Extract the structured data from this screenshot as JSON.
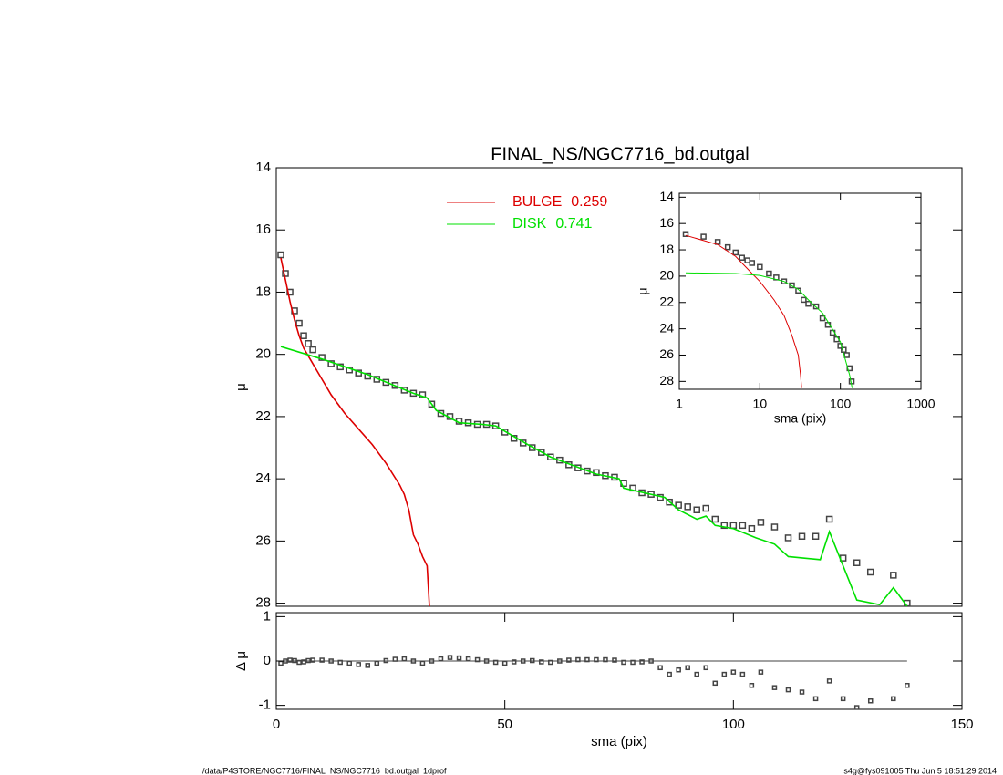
{
  "chart_data": [
    {
      "type": "line",
      "title": "FINAL_NS/NGC7716_bd.outgal",
      "ylabel": "μ",
      "xlim": [
        0,
        150
      ],
      "ylim": [
        28.1,
        14
      ],
      "yticks": [
        14,
        16,
        18,
        20,
        22,
        24,
        26,
        28
      ],
      "series": [
        {
          "style": "markers",
          "color": "#444444",
          "x": [
            1,
            2,
            3,
            4,
            5,
            6,
            7,
            8,
            10,
            12,
            14,
            16,
            18,
            20,
            22,
            24,
            26,
            28,
            30,
            32,
            34,
            36,
            38,
            40,
            42,
            44,
            46,
            48,
            50,
            52,
            54,
            56,
            58,
            60,
            62,
            64,
            66,
            68,
            70,
            72,
            74,
            76,
            78,
            80,
            82,
            84,
            86,
            88,
            90,
            92,
            94,
            96,
            98,
            100,
            102,
            104,
            106,
            109,
            112,
            115,
            118,
            121,
            124,
            127,
            130,
            135,
            138
          ],
          "values": [
            16.8,
            17.4,
            18.0,
            18.6,
            19.0,
            19.4,
            19.65,
            19.85,
            20.1,
            20.3,
            20.4,
            20.5,
            20.6,
            20.7,
            20.8,
            20.9,
            21.0,
            21.15,
            21.25,
            21.3,
            21.6,
            21.9,
            22.0,
            22.15,
            22.2,
            22.25,
            22.25,
            22.3,
            22.5,
            22.7,
            22.85,
            23.0,
            23.15,
            23.3,
            23.4,
            23.55,
            23.65,
            23.75,
            23.8,
            23.9,
            23.95,
            24.15,
            24.3,
            24.45,
            24.5,
            24.6,
            24.75,
            24.85,
            24.9,
            25.0,
            24.95,
            25.3,
            25.5,
            25.5,
            25.5,
            25.6,
            25.4,
            25.55,
            25.9,
            25.85,
            25.85,
            25.3,
            26.55,
            26.7,
            27.0,
            27.1,
            28.0
          ]
        },
        {
          "style": "line",
          "name": "BULGE",
          "fraction": 0.259,
          "color": "#dd0000",
          "x": [
            1,
            2,
            3,
            4,
            5,
            6,
            8,
            10,
            12,
            15,
            18,
            21,
            24,
            27,
            28,
            29,
            30,
            31,
            32,
            33,
            33.5
          ],
          "values": [
            16.9,
            17.6,
            18.3,
            18.9,
            19.4,
            19.8,
            20.3,
            20.8,
            21.3,
            21.9,
            22.4,
            22.9,
            23.5,
            24.2,
            24.5,
            25.0,
            25.8,
            26.1,
            26.5,
            26.8,
            28.1
          ]
        },
        {
          "style": "line",
          "name": "DISK",
          "fraction": 0.741,
          "color": "#00e000",
          "x": [
            1,
            10,
            20,
            30,
            33,
            35,
            40,
            45,
            48,
            55,
            60,
            70,
            75,
            76,
            85,
            88,
            92,
            94,
            96,
            100,
            105,
            109,
            112,
            119,
            121,
            124,
            127,
            132,
            135,
            138
          ],
          "values": [
            19.75,
            20.15,
            20.65,
            21.25,
            21.4,
            21.8,
            22.2,
            22.25,
            22.3,
            22.9,
            23.3,
            23.85,
            24.0,
            24.3,
            24.6,
            25.0,
            25.3,
            25.2,
            25.5,
            25.6,
            25.9,
            26.1,
            26.5,
            26.6,
            25.7,
            26.8,
            27.9,
            28.05,
            27.5,
            28.1
          ]
        }
      ]
    },
    {
      "type": "scatter",
      "xlabel": "sma (pix)",
      "ylabel": "Δ μ",
      "xlim": [
        0,
        150
      ],
      "xticks": [
        0,
        50,
        100,
        150
      ],
      "ylim": [
        -1.09,
        1.09
      ],
      "yticks": [
        -1,
        0,
        1
      ],
      "series": [
        {
          "style": "markers",
          "color": "#444444",
          "x": [
            1,
            2,
            3,
            4,
            5,
            6,
            7,
            8,
            10,
            12,
            14,
            16,
            18,
            20,
            22,
            24,
            26,
            28,
            30,
            32,
            34,
            36,
            38,
            40,
            42,
            44,
            46,
            48,
            50,
            52,
            54,
            56,
            58,
            60,
            62,
            64,
            66,
            68,
            70,
            72,
            74,
            76,
            78,
            80,
            82,
            84,
            86,
            88,
            90,
            92,
            94,
            96,
            98,
            100,
            102,
            104,
            106,
            109,
            112,
            115,
            118,
            121,
            124,
            127,
            130,
            135,
            138
          ],
          "values": [
            -0.05,
            0,
            0.02,
            0.01,
            -0.03,
            -0.02,
            0.01,
            0.02,
            0.02,
            0,
            -0.03,
            -0.05,
            -0.08,
            -0.1,
            -0.05,
            0.01,
            0.04,
            0.05,
            0,
            -0.05,
            0,
            0.05,
            0.08,
            0.07,
            0.05,
            0.03,
            0,
            -0.03,
            -0.05,
            -0.02,
            0,
            0.01,
            -0.02,
            -0.03,
            0,
            0.02,
            0.03,
            0.03,
            0.03,
            0.03,
            0.02,
            -0.03,
            -0.03,
            -0.02,
            0,
            -0.15,
            -0.3,
            -0.2,
            -0.15,
            -0.3,
            -0.15,
            -0.5,
            -0.3,
            -0.25,
            -0.3,
            -0.55,
            -0.25,
            -0.6,
            -0.65,
            -0.7,
            -0.85,
            -0.45,
            -0.85,
            -1.05,
            -0.9,
            -0.85,
            -0.55
          ]
        }
      ]
    },
    {
      "type": "line",
      "xscale": "log",
      "xlabel": "sma (pix)",
      "ylabel": "μ",
      "xlim": [
        1,
        1000
      ],
      "xticks": [
        1,
        10,
        100,
        1000
      ],
      "ylim": [
        28.6,
        13.7
      ],
      "yticks": [
        14,
        16,
        18,
        20,
        22,
        24,
        26,
        28
      ],
      "series": [
        {
          "style": "markers",
          "color": "#444444",
          "x": [
            1.2,
            2,
            3,
            4,
            5,
            6,
            7,
            8,
            10,
            13,
            16,
            20,
            25,
            30,
            35,
            40,
            50,
            60,
            70,
            80,
            90,
            100,
            110,
            120,
            130,
            138
          ],
          "values": [
            16.8,
            17.0,
            17.4,
            17.8,
            18.2,
            18.6,
            18.8,
            19.0,
            19.3,
            19.8,
            20.1,
            20.4,
            20.7,
            21.1,
            21.8,
            22.1,
            22.3,
            23.2,
            23.7,
            24.3,
            24.8,
            25.3,
            25.6,
            26.0,
            27.0,
            28.0
          ]
        },
        {
          "style": "line",
          "color": "#dd0000",
          "x": [
            1.2,
            3,
            5,
            8,
            10,
            15,
            20,
            25,
            30,
            32,
            33
          ],
          "values": [
            16.9,
            17.6,
            18.5,
            19.8,
            20.4,
            21.8,
            23.0,
            24.5,
            26.0,
            27.5,
            28.5
          ]
        },
        {
          "style": "line",
          "color": "#00e000",
          "x": [
            1.2,
            5,
            10,
            20,
            30,
            40,
            60,
            100,
            130,
            140
          ],
          "values": [
            19.75,
            19.8,
            19.95,
            20.4,
            21.0,
            21.8,
            22.8,
            25.0,
            27.5,
            28.5
          ]
        }
      ]
    }
  ],
  "footer": {
    "left": "/data/P4STORE/NGC7716/FINAL_NS/NGC7716_bd.outgal_1dprof",
    "right": "s4g@fys091005  Thu Jun  5 18:51:29 2014"
  }
}
